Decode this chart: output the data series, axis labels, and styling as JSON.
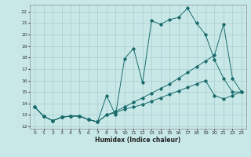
{
  "xlabel": "Humidex (Indice chaleur)",
  "bg_color": "#c8e8e8",
  "grid_color": "#aacccc",
  "line_color": "#1a6b6b",
  "xlim": [
    -0.5,
    23.5
  ],
  "ylim": [
    11.8,
    22.6
  ],
  "yticks": [
    12,
    13,
    14,
    15,
    16,
    17,
    18,
    19,
    20,
    21,
    22
  ],
  "xticks": [
    0,
    1,
    2,
    3,
    4,
    5,
    6,
    7,
    8,
    9,
    10,
    11,
    12,
    13,
    14,
    15,
    16,
    17,
    18,
    19,
    20,
    21,
    22,
    23
  ],
  "line1_x": [
    0,
    1,
    2,
    3,
    4,
    5,
    6,
    7,
    8,
    9,
    10,
    11,
    12,
    13,
    14,
    15,
    16,
    17,
    18,
    19,
    20,
    21,
    22,
    23
  ],
  "line1_y": [
    13.7,
    12.9,
    12.5,
    12.8,
    12.9,
    12.9,
    12.6,
    12.4,
    14.7,
    13.0,
    17.9,
    18.8,
    15.8,
    21.2,
    20.9,
    21.3,
    21.5,
    22.3,
    21.0,
    20.0,
    17.8,
    16.2,
    15.0,
    15.0
  ],
  "line2_x": [
    0,
    1,
    2,
    3,
    4,
    5,
    6,
    7,
    8,
    9,
    10,
    11,
    12,
    13,
    14,
    15,
    16,
    17,
    18,
    19,
    20,
    21,
    22,
    23
  ],
  "line2_y": [
    13.7,
    12.9,
    12.5,
    12.8,
    12.9,
    12.9,
    12.6,
    12.4,
    13.0,
    13.3,
    13.7,
    14.1,
    14.5,
    14.9,
    15.3,
    15.7,
    16.2,
    16.7,
    17.2,
    17.7,
    18.2,
    20.9,
    16.2,
    15.0
  ],
  "line3_x": [
    0,
    1,
    2,
    3,
    4,
    5,
    6,
    7,
    8,
    9,
    10,
    11,
    12,
    13,
    14,
    15,
    16,
    17,
    18,
    19,
    20,
    21,
    22,
    23
  ],
  "line3_y": [
    13.7,
    12.9,
    12.5,
    12.8,
    12.9,
    12.9,
    12.6,
    12.4,
    13.0,
    13.2,
    13.5,
    13.7,
    13.9,
    14.2,
    14.5,
    14.8,
    15.1,
    15.4,
    15.7,
    16.0,
    14.7,
    14.4,
    14.7,
    15.0
  ]
}
